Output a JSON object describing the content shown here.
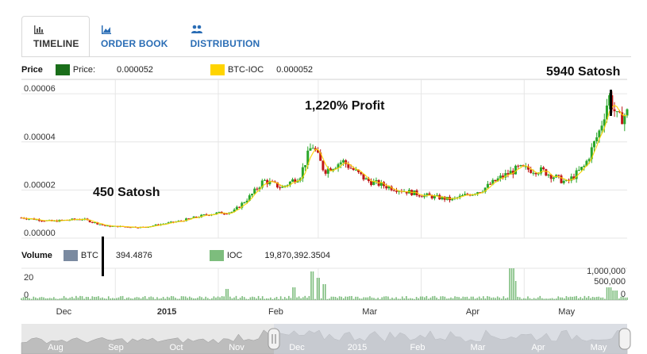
{
  "tabs": [
    {
      "label": "TIMELINE",
      "icon": "bar-chart-icon",
      "active": true
    },
    {
      "label": "ORDER BOOK",
      "icon": "area-chart-icon",
      "active": false
    },
    {
      "label": "DISTRIBUTION",
      "icon": "users-icon",
      "active": false
    }
  ],
  "price_legend": {
    "title": "Price",
    "items": [
      {
        "label": "Price:",
        "value": "0.000052",
        "color": "#1a6e1a"
      },
      {
        "label": "BTC-IOC",
        "value": "0.000052",
        "color": "#ffd400"
      }
    ]
  },
  "volume_legend": {
    "title": "Volume",
    "items": [
      {
        "label": "BTC",
        "value": "394.4876",
        "color": "#7a8aa0"
      },
      {
        "label": "IOC",
        "value": "19,870,392.3504",
        "color": "#7dbd7d"
      }
    ]
  },
  "annotations": {
    "start": "450 Satosh",
    "middle": "1,220% Profit",
    "end": "5940 Satosh"
  },
  "chart_data": [
    {
      "type": "candlestick",
      "name": "price",
      "ylim": [
        0,
        6.6e-05
      ],
      "yticks": [
        "0.00000",
        "0.00002",
        "0.00004",
        "0.00006"
      ],
      "ytick_values": [
        0,
        2e-05,
        4e-05,
        6e-05
      ],
      "keypoints": [
        {
          "t": 0.0,
          "v": 8.5e-06
        },
        {
          "t": 0.05,
          "v": 7e-06
        },
        {
          "t": 0.1,
          "v": 8e-06
        },
        {
          "t": 0.14,
          "v": 5e-06
        },
        {
          "t": 0.2,
          "v": 4.5e-06
        },
        {
          "t": 0.26,
          "v": 7e-06
        },
        {
          "t": 0.31,
          "v": 1e-05
        },
        {
          "t": 0.35,
          "v": 1.1e-05
        },
        {
          "t": 0.38,
          "v": 1.8e-05
        },
        {
          "t": 0.4,
          "v": 2.4e-05
        },
        {
          "t": 0.43,
          "v": 2.1e-05
        },
        {
          "t": 0.46,
          "v": 2.6e-05
        },
        {
          "t": 0.48,
          "v": 3.9e-05
        },
        {
          "t": 0.5,
          "v": 2.8e-05
        },
        {
          "t": 0.53,
          "v": 3.2e-05
        },
        {
          "t": 0.57,
          "v": 2.4e-05
        },
        {
          "t": 0.61,
          "v": 2.1e-05
        },
        {
          "t": 0.66,
          "v": 1.8e-05
        },
        {
          "t": 0.71,
          "v": 1.6e-05
        },
        {
          "t": 0.76,
          "v": 2e-05
        },
        {
          "t": 0.79,
          "v": 2.5e-05
        },
        {
          "t": 0.82,
          "v": 2.9e-05
        },
        {
          "t": 0.86,
          "v": 2.8e-05
        },
        {
          "t": 0.9,
          "v": 2.3e-05
        },
        {
          "t": 0.93,
          "v": 3e-05
        },
        {
          "t": 0.955,
          "v": 4.5e-05
        },
        {
          "t": 0.97,
          "v": 5.9e-05
        },
        {
          "t": 0.985,
          "v": 4.9e-05
        },
        {
          "t": 1.0,
          "v": 5.2e-05
        }
      ]
    },
    {
      "type": "bar",
      "name": "volume",
      "y_left_ticks": [
        "20",
        "0"
      ],
      "y_right_ticks": [
        "1,000,000",
        "500,000",
        "0"
      ],
      "spikes": [
        {
          "t": 0.45,
          "v": 0.4
        },
        {
          "t": 0.48,
          "v": 0.9
        },
        {
          "t": 0.49,
          "v": 0.7
        },
        {
          "t": 0.5,
          "v": 0.5
        },
        {
          "t": 0.34,
          "v": 0.35
        },
        {
          "t": 0.81,
          "v": 1.0
        },
        {
          "t": 0.815,
          "v": 0.6
        },
        {
          "t": 0.97,
          "v": 0.4
        },
        {
          "t": 0.98,
          "v": 0.3
        }
      ]
    }
  ],
  "x_axis": {
    "labels": [
      {
        "label": "Dec",
        "t": 0.07
      },
      {
        "label": "2015",
        "t": 0.24,
        "bold": true
      },
      {
        "label": "Feb",
        "t": 0.42
      },
      {
        "label": "Mar",
        "t": 0.575
      },
      {
        "label": "Apr",
        "t": 0.745
      },
      {
        "label": "May",
        "t": 0.9
      }
    ]
  },
  "navigator": {
    "labels": [
      "Aug",
      "Sep",
      "Oct",
      "Nov",
      "Dec",
      "2015",
      "Feb",
      "Mar",
      "Apr",
      "May"
    ]
  }
}
